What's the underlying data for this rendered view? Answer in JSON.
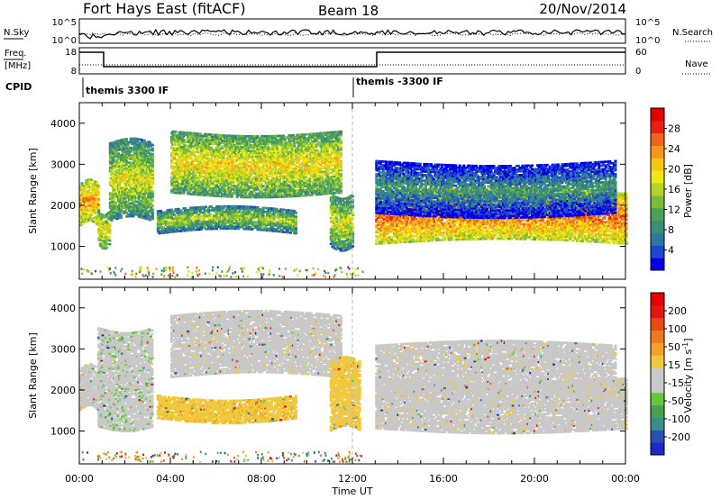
{
  "header": {
    "title": "Fort Hays East (fitACF)",
    "beam": "Beam 18",
    "date": "20/Nov/2014"
  },
  "noise_panel": {
    "left_label": "N.Sky",
    "left_ticks": [
      "10^5",
      "10^0"
    ],
    "right_label": "N.Search",
    "right_ticks": [
      "10^5",
      "10^0"
    ]
  },
  "freq_panel": {
    "left_label_1": "Freq.",
    "left_label_2": "[MHz]",
    "left_ticks": [
      "18",
      "8"
    ],
    "right_label": "Nave",
    "right_ticks": [
      "60",
      "0"
    ]
  },
  "cpid": {
    "label": "CPID",
    "segments": [
      {
        "start_hour": 0,
        "text": "themis 3300 IF"
      },
      {
        "start_hour": 12,
        "text": "themis -3300 IF"
      }
    ]
  },
  "chart_data": [
    {
      "type": "heatmap",
      "panel": "power",
      "xlabel": "Time UT",
      "ylabel": "Slant Range [km]",
      "xlim": [
        0,
        24
      ],
      "ylim": [
        200,
        4500
      ],
      "x_ticks": [
        "00:00",
        "04:00",
        "08:00",
        "12:00",
        "16:00",
        "20:00",
        "00:00"
      ],
      "y_ticks": [
        "1000",
        "2000",
        "3000",
        "4000"
      ],
      "colorbar": {
        "label": "Power [dB]",
        "range": [
          0,
          32
        ],
        "ticks": [
          "4",
          "8",
          "12",
          "16",
          "20",
          "24",
          "28"
        ],
        "colors": [
          "#0000e6",
          "#1e46d2",
          "#2d78a0",
          "#3c8c78",
          "#4ba05a",
          "#78be3c",
          "#b4d228",
          "#f0e614",
          "#f5c814",
          "#f5961e",
          "#f0641e",
          "#e61e14",
          "#e60000"
        ]
      },
      "echo_bands": [
        {
          "t0": 0.0,
          "t1": 0.8,
          "r_lo": 1500,
          "r_hi": 2500,
          "power": 24
        },
        {
          "t0": 0.8,
          "t1": 1.3,
          "r_lo": 1050,
          "r_hi": 1900,
          "power": 20
        },
        {
          "t0": 1.3,
          "t1": 3.2,
          "r_lo": 1600,
          "r_hi": 3500,
          "power": 18
        },
        {
          "t0": 4.0,
          "t1": 11.5,
          "r_lo": 2300,
          "r_hi": 3800,
          "power": 20
        },
        {
          "t0": 3.4,
          "t1": 9.5,
          "r_lo": 1300,
          "r_hi": 1850,
          "power": 16
        },
        {
          "t0": 11.0,
          "t1": 12.0,
          "r_lo": 1000,
          "r_hi": 2300,
          "power": 18
        },
        {
          "t0": 13.0,
          "t1": 24.0,
          "r_lo": 1050,
          "r_hi": 2300,
          "power": 26
        },
        {
          "t0": 13.0,
          "t1": 23.5,
          "r_lo": 1800,
          "r_hi": 3100,
          "power": 10
        }
      ]
    },
    {
      "type": "heatmap",
      "panel": "velocity",
      "xlabel": "Time UT",
      "ylabel": "Slant Range [km]",
      "xlim": [
        0,
        24
      ],
      "ylim": [
        200,
        4500
      ],
      "x_ticks": [
        "00:00",
        "04:00",
        "08:00",
        "12:00",
        "16:00",
        "20:00",
        "00:00"
      ],
      "y_ticks": [
        "1000",
        "2000",
        "3000",
        "4000"
      ],
      "colorbar": {
        "label": "Velocity [m s",
        "label_sup": "-1",
        "label_end": "]",
        "range": [
          -240,
          240
        ],
        "ticks": [
          "200",
          "100",
          "50",
          "15",
          "-15",
          "-50",
          "-100",
          "-200"
        ],
        "colors": [
          "#1e28c8",
          "#2850b4",
          "#3c8c8c",
          "#4ba050",
          "#64c83c",
          "#c8c8c8",
          "#c8c8c8",
          "#f0c83c",
          "#f5a028",
          "#f0781e",
          "#e64b14",
          "#e61414",
          "#e60000"
        ]
      },
      "echo_bands": [
        {
          "t0": 0.0,
          "t1": 0.8,
          "r_lo": 1500,
          "r_hi": 2500,
          "velocity": 0
        },
        {
          "t0": 0.8,
          "t1": 3.2,
          "r_lo": 1100,
          "r_hi": 3500,
          "velocity": -40
        },
        {
          "t0": 4.0,
          "t1": 11.5,
          "r_lo": 2300,
          "r_hi": 3800,
          "velocity": 0
        },
        {
          "t0": 3.4,
          "t1": 9.5,
          "r_lo": 1300,
          "r_hi": 1850,
          "velocity": 40
        },
        {
          "t0": 11.0,
          "t1": 12.3,
          "r_lo": 1000,
          "r_hi": 2700,
          "velocity": 35
        },
        {
          "t0": 13.0,
          "t1": 24.0,
          "r_lo": 1050,
          "r_hi": 2300,
          "velocity": 0
        },
        {
          "t0": 13.0,
          "t1": 23.5,
          "r_lo": 1800,
          "r_hi": 3100,
          "velocity": 0
        }
      ]
    }
  ]
}
